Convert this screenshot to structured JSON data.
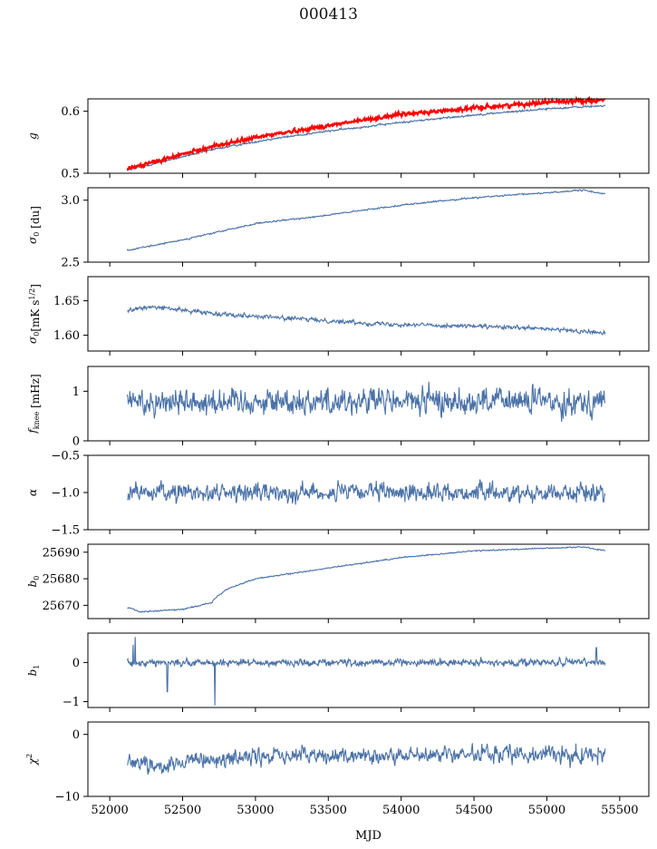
{
  "figure": {
    "title": "000413",
    "xlabel": "MJD"
  },
  "chart_data": {
    "type": "line",
    "title": "000413",
    "xlabel": "MJD",
    "x_range": [
      52120,
      55400
    ],
    "xlim": [
      51850,
      55700
    ],
    "xticks": [
      52000,
      52500,
      53000,
      53500,
      54000,
      54500,
      55000,
      55500
    ],
    "xtick_labels": [
      "52000",
      "52500",
      "53000",
      "53500",
      "54000",
      "54500",
      "55000",
      "55500"
    ],
    "line_color": "#4a72a8",
    "highlight_color": "#ff0000",
    "panels": [
      {
        "ylabel": "g",
        "ylim": [
          0.5,
          0.62
        ],
        "yticks": [
          0.5,
          0.6
        ],
        "ytick_labels": [
          "0.5",
          "0.6"
        ],
        "series": [
          {
            "color": "#4a72a8",
            "trend": [
              [
                52120,
                0.505
              ],
              [
                52300,
                0.515
              ],
              [
                52700,
                0.538
              ],
              [
                53100,
                0.555
              ],
              [
                53500,
                0.568
              ],
              [
                54000,
                0.582
              ],
              [
                54500,
                0.594
              ],
              [
                55000,
                0.604
              ],
              [
                55400,
                0.609
              ]
            ],
            "noise": 0.001
          },
          {
            "color": "#ff0000",
            "trend": [
              [
                52120,
                0.507
              ],
              [
                52300,
                0.518
              ],
              [
                52700,
                0.543
              ],
              [
                53100,
                0.562
              ],
              [
                53500,
                0.577
              ],
              [
                54000,
                0.595
              ],
              [
                54500,
                0.605
              ],
              [
                55000,
                0.615
              ],
              [
                55400,
                0.618
              ]
            ],
            "noise": 0.002
          }
        ]
      },
      {
        "ylabel": "σ0 [du]",
        "ylim": [
          2.5,
          3.1
        ],
        "yticks": [
          2.5,
          3.0
        ],
        "ytick_labels": [
          "2.5",
          "3.0"
        ],
        "series": [
          {
            "color": "#4a72a8",
            "trend": [
              [
                52150,
                2.6
              ],
              [
                52500,
                2.68
              ],
              [
                53000,
                2.81
              ],
              [
                53500,
                2.88
              ],
              [
                54000,
                2.96
              ],
              [
                54500,
                3.02
              ],
              [
                55000,
                3.06
              ],
              [
                55250,
                3.08
              ],
              [
                55400,
                3.05
              ]
            ],
            "noise": 0.004
          }
        ]
      },
      {
        "ylabel": "σ0[mK s^1/2]",
        "ylim": [
          1.577,
          1.685
        ],
        "yticks": [
          1.6,
          1.65
        ],
        "ytick_labels": [
          "1.60",
          "1.65"
        ],
        "series": [
          {
            "color": "#4a72a8",
            "trend": [
              [
                52150,
                1.637
              ],
              [
                52300,
                1.641
              ],
              [
                52700,
                1.632
              ],
              [
                53200,
                1.625
              ],
              [
                53800,
                1.617
              ],
              [
                54500,
                1.613
              ],
              [
                55000,
                1.609
              ],
              [
                55400,
                1.603
              ]
            ],
            "noise": 0.002
          }
        ]
      },
      {
        "ylabel": "fknee [mHz]",
        "ylim": [
          0,
          1.5
        ],
        "yticks": [
          0,
          1
        ],
        "ytick_labels": [
          "0",
          "1"
        ],
        "series": [
          {
            "color": "#4a72a8",
            "trend": [
              [
                52120,
                0.8
              ],
              [
                55400,
                0.8
              ]
            ],
            "noise": 0.18
          }
        ]
      },
      {
        "ylabel": "α",
        "ylim": [
          -1.5,
          -0.5
        ],
        "yticks": [
          -1.5,
          -1.0,
          -0.5
        ],
        "ytick_labels": [
          "−1.5",
          "−1.0",
          "−0.5"
        ],
        "series": [
          {
            "color": "#4a72a8",
            "trend": [
              [
                52120,
                -1.0
              ],
              [
                55400,
                -1.0
              ]
            ],
            "noise": 0.08
          }
        ]
      },
      {
        "ylabel": "b0",
        "ylim": [
          25665,
          25693
        ],
        "yticks": [
          25670,
          25680,
          25690
        ],
        "ytick_labels": [
          "25670",
          "25680",
          "25690"
        ],
        "series": [
          {
            "color": "#4a72a8",
            "trend": [
              [
                52150,
                25669
              ],
              [
                52200,
                25667.5
              ],
              [
                52500,
                25668.5
              ],
              [
                52700,
                25671
              ],
              [
                52720,
                25672.5
              ],
              [
                52800,
                25676
              ],
              [
                53000,
                25680
              ],
              [
                53500,
                25684
              ],
              [
                54000,
                25688
              ],
              [
                54500,
                25690.5
              ],
              [
                55000,
                25691.5
              ],
              [
                55250,
                25692
              ],
              [
                55400,
                25690.5
              ]
            ],
            "noise": 0.15
          }
        ]
      },
      {
        "ylabel": "b1",
        "ylim": [
          -1.15,
          0.75
        ],
        "yticks": [
          -1,
          0
        ],
        "ytick_labels": [
          "−1",
          "0"
        ],
        "series": [
          {
            "color": "#4a72a8",
            "trend": [
              [
                52120,
                0.0
              ],
              [
                55400,
                0.0
              ]
            ],
            "noise": 0.06,
            "spikes": [
              [
                52175,
                0.65
              ],
              [
                52160,
                0.45
              ],
              [
                52395,
                -0.75
              ],
              [
                52720,
                -1.1
              ],
              [
                55340,
                0.38
              ]
            ]
          }
        ]
      },
      {
        "ylabel": "χ2",
        "ylim": [
          -10,
          2
        ],
        "yticks": [
          -10,
          0
        ],
        "ytick_labels": [
          "−10",
          "0"
        ],
        "series": [
          {
            "color": "#4a72a8",
            "trend": [
              [
                52120,
                -4
              ],
              [
                52300,
                -5
              ],
              [
                52600,
                -4.5
              ],
              [
                53000,
                -3.5
              ],
              [
                53500,
                -3.5
              ],
              [
                54000,
                -3.5
              ],
              [
                54500,
                -3.2
              ],
              [
                55000,
                -3.0
              ],
              [
                55400,
                -3.5
              ]
            ],
            "noise": 0.9
          }
        ]
      }
    ]
  }
}
